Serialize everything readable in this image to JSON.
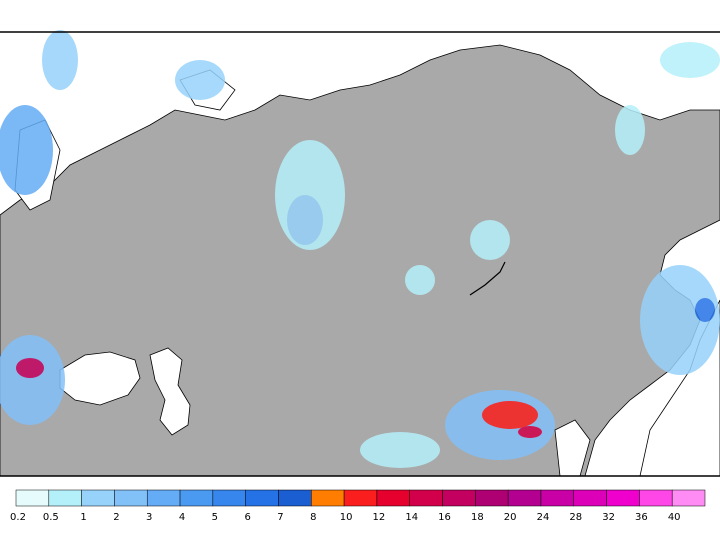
{
  "legend": {
    "labels": [
      "0.2",
      "0.5",
      "1",
      "2",
      "3",
      "4",
      "5",
      "6",
      "7",
      "8",
      "10",
      "12",
      "14",
      "16",
      "18",
      "20",
      "24",
      "28",
      "32",
      "36",
      "40"
    ],
    "colors": [
      "#e6fcfc",
      "#b4f0fa",
      "#96d2fa",
      "#82c0f8",
      "#64acf5",
      "#4a9af2",
      "#3686ee",
      "#2472e6",
      "#1a5ed2",
      "#ff7d00",
      "#fa1e1e",
      "#e6002d",
      "#d2004b",
      "#c3005f",
      "#af0073",
      "#b40091",
      "#c800a5",
      "#dc00b9",
      "#f000cd",
      "#ff46e6",
      "#ff8cf5"
    ]
  }
}
